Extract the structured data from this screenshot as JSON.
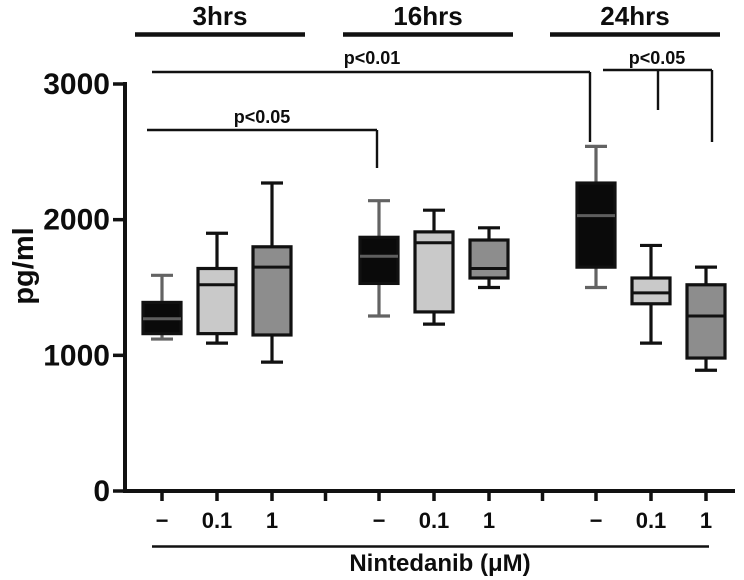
{
  "chart_data": {
    "type": "boxplot",
    "title": "",
    "ylabel": "pg/ml",
    "xlabel": "Nintedanib (μM)",
    "ylim": [
      0,
      3000
    ],
    "yticks": [
      "0",
      "1000",
      "2000",
      "3000"
    ],
    "grid": false,
    "legend": "none",
    "groups": [
      {
        "label": "3hrs",
        "boxes": [
          {
            "dose": "−",
            "style": "black",
            "whisker_low": 1120,
            "q1": 1160,
            "median": 1270,
            "q3": 1390,
            "whisker_high": 1590
          },
          {
            "dose": "0.1",
            "style": "light_gray",
            "whisker_low": 1090,
            "q1": 1160,
            "median": 1520,
            "q3": 1640,
            "whisker_high": 1900
          },
          {
            "dose": "1",
            "style": "dark_gray",
            "whisker_low": 950,
            "q1": 1150,
            "median": 1650,
            "q3": 1800,
            "whisker_high": 2270
          }
        ]
      },
      {
        "label": "16hrs",
        "boxes": [
          {
            "dose": "−",
            "style": "black",
            "whisker_low": 1290,
            "q1": 1530,
            "median": 1730,
            "q3": 1870,
            "whisker_high": 2140
          },
          {
            "dose": "0.1",
            "style": "light_gray",
            "whisker_low": 1230,
            "q1": 1320,
            "median": 1830,
            "q3": 1910,
            "whisker_high": 2070
          },
          {
            "dose": "1",
            "style": "dark_gray",
            "whisker_low": 1500,
            "q1": 1570,
            "median": 1640,
            "q3": 1850,
            "whisker_high": 1940
          }
        ]
      },
      {
        "label": "24hrs",
        "boxes": [
          {
            "dose": "−",
            "style": "black",
            "whisker_low": 1500,
            "q1": 1650,
            "median": 2030,
            "q3": 2270,
            "whisker_high": 2540
          },
          {
            "dose": "0.1",
            "style": "light_gray",
            "whisker_low": 1090,
            "q1": 1380,
            "median": 1460,
            "q3": 1570,
            "whisker_high": 1810
          },
          {
            "dose": "1",
            "style": "dark_gray",
            "whisker_low": 890,
            "q1": 980,
            "median": 1290,
            "q3": 1520,
            "whisker_high": 1650
          }
        ]
      }
    ],
    "significance_brackets": [
      {
        "label": "p<0.05",
        "from": "3hrs −",
        "to": "16hrs −"
      },
      {
        "label": "p<0.01",
        "from": "3hrs −",
        "to": "24hrs −"
      },
      {
        "label": "p<0.05",
        "from": "24hrs −",
        "to": "24hrs 0.1 and 24hrs 1"
      }
    ],
    "colors": {
      "black_box": "#0a0a0a",
      "light_gray_box": "#c9c9c9",
      "dark_gray_box": "#8d8d8d",
      "line": "#111111",
      "gray_line": "#636363",
      "black_box_median": "#5e5e5e",
      "background": "#ffffff"
    }
  }
}
